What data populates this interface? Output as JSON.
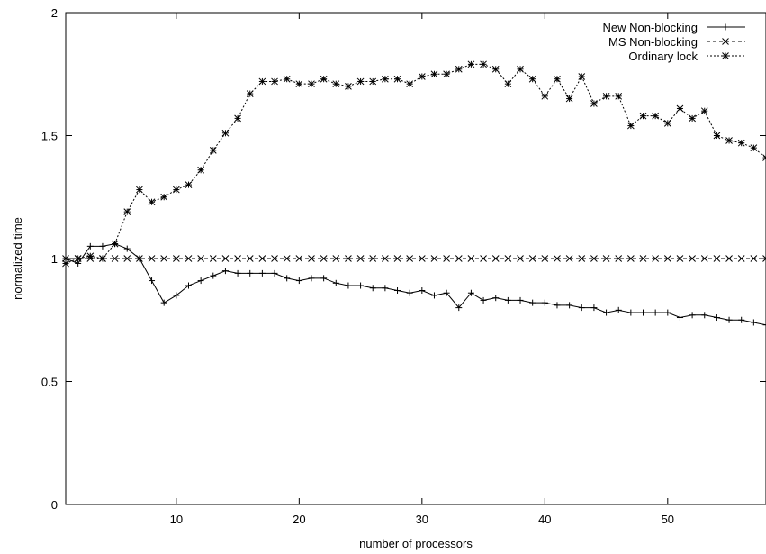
{
  "chart_data": {
    "type": "line",
    "title": "",
    "xlabel": "number of processors",
    "ylabel": "normalized time",
    "xlim": [
      1,
      58
    ],
    "ylim": [
      0,
      2
    ],
    "xticks": [
      10,
      20,
      30,
      40,
      50
    ],
    "yticks": [
      0,
      0.5,
      1,
      1.5,
      2
    ],
    "xtick_labels": [
      "10",
      "20",
      "30",
      "40",
      "50"
    ],
    "ytick_labels": [
      "0",
      "0.5",
      "1",
      "1.5",
      "2"
    ],
    "grid": false,
    "legend_position": "top-right",
    "x": [
      1,
      2,
      3,
      4,
      5,
      6,
      7,
      8,
      9,
      10,
      11,
      12,
      13,
      14,
      15,
      16,
      17,
      18,
      19,
      20,
      21,
      22,
      23,
      24,
      25,
      26,
      27,
      28,
      29,
      30,
      31,
      32,
      33,
      34,
      35,
      36,
      37,
      38,
      39,
      40,
      41,
      42,
      43,
      44,
      45,
      46,
      47,
      48,
      49,
      50,
      51,
      52,
      53,
      54,
      55,
      56,
      57,
      58
    ],
    "series": [
      {
        "name": "New Non-blocking",
        "marker": "plus",
        "line": "solid",
        "values": [
          1.0,
          0.98,
          1.05,
          1.05,
          1.06,
          1.04,
          1.0,
          0.91,
          0.82,
          0.85,
          0.89,
          0.91,
          0.93,
          0.95,
          0.94,
          0.94,
          0.94,
          0.94,
          0.92,
          0.91,
          0.92,
          0.92,
          0.9,
          0.89,
          0.89,
          0.88,
          0.88,
          0.87,
          0.86,
          0.87,
          0.85,
          0.86,
          0.8,
          0.86,
          0.83,
          0.84,
          0.83,
          0.83,
          0.82,
          0.82,
          0.81,
          0.81,
          0.8,
          0.8,
          0.78,
          0.79,
          0.78,
          0.78,
          0.78,
          0.78,
          0.76,
          0.77,
          0.77,
          0.76,
          0.75,
          0.75,
          0.74,
          0.73
        ]
      },
      {
        "name": "MS Non-blocking",
        "marker": "x",
        "line": "dashed",
        "values": [
          1.0,
          1.0,
          1.0,
          1.0,
          1.0,
          1.0,
          1.0,
          1.0,
          1.0,
          1.0,
          1.0,
          1.0,
          1.0,
          1.0,
          1.0,
          1.0,
          1.0,
          1.0,
          1.0,
          1.0,
          1.0,
          1.0,
          1.0,
          1.0,
          1.0,
          1.0,
          1.0,
          1.0,
          1.0,
          1.0,
          1.0,
          1.0,
          1.0,
          1.0,
          1.0,
          1.0,
          1.0,
          1.0,
          1.0,
          1.0,
          1.0,
          1.0,
          1.0,
          1.0,
          1.0,
          1.0,
          1.0,
          1.0,
          1.0,
          1.0,
          1.0,
          1.0,
          1.0,
          1.0,
          1.0,
          1.0,
          1.0,
          1.0
        ]
      },
      {
        "name": "Ordinary lock",
        "marker": "star",
        "line": "dotted",
        "values": [
          0.98,
          1.0,
          1.01,
          1.0,
          1.06,
          1.19,
          1.28,
          1.23,
          1.25,
          1.28,
          1.3,
          1.36,
          1.44,
          1.51,
          1.57,
          1.67,
          1.72,
          1.72,
          1.73,
          1.71,
          1.71,
          1.73,
          1.71,
          1.7,
          1.72,
          1.72,
          1.73,
          1.73,
          1.71,
          1.74,
          1.75,
          1.75,
          1.77,
          1.79,
          1.79,
          1.77,
          1.71,
          1.77,
          1.73,
          1.66,
          1.73,
          1.65,
          1.74,
          1.63,
          1.66,
          1.66,
          1.54,
          1.58,
          1.58,
          1.55,
          1.61,
          1.57,
          1.6,
          1.5,
          1.48,
          1.47,
          1.45,
          1.41
        ]
      }
    ]
  }
}
